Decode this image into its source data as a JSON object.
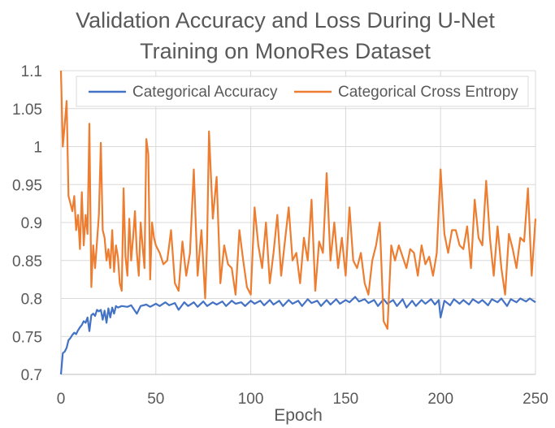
{
  "chart_data": {
    "type": "line",
    "title_lines": [
      "Validation Accuracy and Loss During U-Net",
      "Training on MonoRes Dataset"
    ],
    "xlabel": "Epoch",
    "ylabel": "",
    "xlim": [
      0,
      250
    ],
    "ylim": [
      0.7,
      1.1
    ],
    "x_ticks": [
      0,
      50,
      100,
      150,
      200,
      250
    ],
    "y_ticks": [
      0.7,
      0.75,
      0.8,
      0.85,
      0.9,
      0.95,
      1,
      1.05,
      1.1
    ],
    "x_tick_labels": [
      "0",
      "50",
      "100",
      "150",
      "200",
      "250"
    ],
    "y_tick_labels": [
      "0.7",
      "0.75",
      "0.8",
      "0.85",
      "0.9",
      "0.95",
      "1",
      "1.05",
      "1.1"
    ],
    "grid": true,
    "legend_position": "top",
    "series": [
      {
        "name": "Categorical Accuracy",
        "color": "#4472c4",
        "x": [
          0,
          1,
          2,
          3,
          4,
          5,
          6,
          7,
          8,
          9,
          10,
          11,
          12,
          13,
          14,
          15,
          16,
          17,
          18,
          19,
          20,
          21,
          22,
          23,
          24,
          25,
          26,
          27,
          28,
          29,
          30,
          32,
          35,
          37,
          40,
          42,
          45,
          47,
          50,
          52,
          55,
          57,
          60,
          62,
          65,
          67,
          70,
          72,
          75,
          77,
          80,
          82,
          85,
          87,
          90,
          92,
          95,
          97,
          100,
          102,
          105,
          107,
          110,
          112,
          115,
          117,
          120,
          122,
          125,
          127,
          130,
          132,
          135,
          137,
          140,
          142,
          145,
          147,
          150,
          152,
          155,
          157,
          160,
          162,
          165,
          167,
          170,
          172,
          175,
          177,
          180,
          182,
          185,
          187,
          190,
          192,
          195,
          197,
          199,
          200,
          202,
          205,
          207,
          210,
          212,
          215,
          217,
          220,
          222,
          225,
          227,
          230,
          232,
          235,
          237,
          240,
          242,
          245,
          247,
          250
        ],
        "values": [
          0.7,
          0.728,
          0.73,
          0.735,
          0.745,
          0.748,
          0.752,
          0.755,
          0.753,
          0.758,
          0.762,
          0.765,
          0.77,
          0.768,
          0.775,
          0.757,
          0.778,
          0.78,
          0.777,
          0.785,
          0.783,
          0.785,
          0.772,
          0.784,
          0.768,
          0.787,
          0.775,
          0.788,
          0.78,
          0.79,
          0.788,
          0.79,
          0.789,
          0.791,
          0.78,
          0.79,
          0.792,
          0.789,
          0.793,
          0.79,
          0.795,
          0.791,
          0.794,
          0.785,
          0.795,
          0.79,
          0.795,
          0.789,
          0.796,
          0.79,
          0.795,
          0.792,
          0.796,
          0.79,
          0.797,
          0.793,
          0.795,
          0.79,
          0.797,
          0.793,
          0.797,
          0.791,
          0.798,
          0.792,
          0.797,
          0.79,
          0.798,
          0.793,
          0.797,
          0.79,
          0.799,
          0.794,
          0.797,
          0.79,
          0.798,
          0.792,
          0.799,
          0.793,
          0.798,
          0.795,
          0.802,
          0.796,
          0.799,
          0.794,
          0.798,
          0.79,
          0.799,
          0.793,
          0.798,
          0.79,
          0.799,
          0.788,
          0.797,
          0.79,
          0.798,
          0.793,
          0.799,
          0.792,
          0.798,
          0.775,
          0.797,
          0.791,
          0.799,
          0.793,
          0.798,
          0.792,
          0.799,
          0.794,
          0.798,
          0.791,
          0.799,
          0.795,
          0.8,
          0.79,
          0.799,
          0.795,
          0.8,
          0.796,
          0.8,
          0.795
        ]
      },
      {
        "name": "Categorical Cross Entropy",
        "color": "#ed7d31",
        "x": [
          0,
          1,
          2,
          3,
          4,
          5,
          6,
          7,
          8,
          9,
          10,
          11,
          12,
          13,
          14,
          15,
          16,
          17,
          18,
          19,
          20,
          21,
          22,
          23,
          24,
          25,
          26,
          27,
          28,
          29,
          30,
          31,
          32,
          33,
          34,
          35,
          36,
          37,
          38,
          39,
          40,
          41,
          42,
          43,
          44,
          45,
          46,
          47,
          48,
          49,
          50,
          52,
          54,
          56,
          58,
          60,
          62,
          64,
          66,
          68,
          70,
          72,
          74,
          76,
          77,
          78,
          80,
          82,
          84,
          86,
          88,
          90,
          92,
          94,
          96,
          98,
          100,
          102,
          104,
          106,
          108,
          110,
          112,
          114,
          116,
          118,
          120,
          122,
          124,
          126,
          128,
          130,
          132,
          134,
          136,
          138,
          140,
          142,
          144,
          146,
          148,
          150,
          152,
          154,
          156,
          158,
          160,
          162,
          164,
          166,
          168,
          170,
          172,
          174,
          176,
          178,
          180,
          182,
          184,
          186,
          188,
          190,
          192,
          194,
          196,
          198,
          200,
          202,
          204,
          206,
          208,
          210,
          212,
          214,
          216,
          218,
          220,
          222,
          224,
          226,
          228,
          230,
          232,
          234,
          236,
          238,
          240,
          242,
          244,
          246,
          248,
          250
        ],
        "values": [
          1.1,
          1.0,
          1.03,
          1.06,
          0.935,
          0.925,
          0.915,
          0.935,
          0.89,
          0.91,
          0.865,
          0.94,
          0.87,
          0.91,
          0.885,
          1.03,
          0.815,
          0.87,
          0.84,
          0.875,
          0.91,
          1.005,
          0.89,
          0.88,
          0.85,
          0.865,
          0.84,
          0.89,
          0.835,
          0.87,
          0.855,
          0.82,
          0.81,
          0.945,
          0.855,
          0.83,
          0.905,
          0.85,
          0.88,
          0.915,
          0.86,
          0.83,
          0.9,
          0.87,
          0.84,
          1.01,
          0.99,
          0.825,
          0.9,
          0.88,
          0.87,
          0.86,
          0.845,
          0.85,
          0.89,
          0.82,
          0.81,
          0.875,
          0.83,
          0.86,
          0.97,
          0.83,
          0.89,
          0.8,
          0.875,
          1.02,
          0.905,
          0.96,
          0.82,
          0.87,
          0.845,
          0.84,
          0.805,
          0.89,
          0.85,
          0.815,
          0.805,
          0.92,
          0.87,
          0.84,
          0.9,
          0.82,
          0.86,
          0.91,
          0.83,
          0.875,
          0.92,
          0.85,
          0.86,
          0.82,
          0.88,
          0.85,
          0.93,
          0.81,
          0.875,
          0.86,
          0.965,
          0.85,
          0.9,
          0.84,
          0.88,
          0.83,
          0.92,
          0.85,
          0.84,
          0.86,
          0.82,
          0.805,
          0.85,
          0.87,
          0.9,
          0.77,
          0.76,
          0.87,
          0.85,
          0.87,
          0.855,
          0.84,
          0.865,
          0.86,
          0.83,
          0.87,
          0.845,
          0.855,
          0.83,
          0.86,
          0.97,
          0.885,
          0.86,
          0.89,
          0.89,
          0.87,
          0.865,
          0.895,
          0.84,
          0.93,
          0.88,
          0.87,
          0.955,
          0.88,
          0.83,
          0.895,
          0.84,
          0.805,
          0.885,
          0.865,
          0.84,
          0.88,
          0.875,
          0.945,
          0.83,
          0.905
        ]
      }
    ]
  }
}
